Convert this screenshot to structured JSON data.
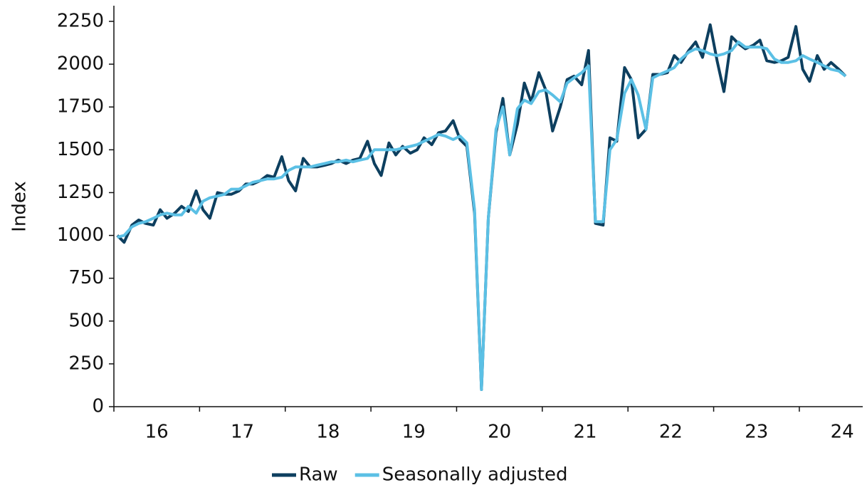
{
  "chart_data": {
    "type": "line",
    "ylabel": "Index",
    "x": [
      16.0,
      16.08,
      16.17,
      16.25,
      16.33,
      16.42,
      16.5,
      16.58,
      16.67,
      16.75,
      16.83,
      16.92,
      17.0,
      17.08,
      17.17,
      17.25,
      17.33,
      17.42,
      17.5,
      17.58,
      17.67,
      17.75,
      17.83,
      17.92,
      18.0,
      18.08,
      18.17,
      18.25,
      18.33,
      18.42,
      18.5,
      18.58,
      18.67,
      18.75,
      18.83,
      18.92,
      19.0,
      19.08,
      19.17,
      19.25,
      19.33,
      19.42,
      19.5,
      19.58,
      19.67,
      19.75,
      19.83,
      19.92,
      20.0,
      20.08,
      20.17,
      20.25,
      20.33,
      20.42,
      20.5,
      20.58,
      20.67,
      20.75,
      20.83,
      20.92,
      21.0,
      21.08,
      21.17,
      21.25,
      21.33,
      21.42,
      21.5,
      21.58,
      21.67,
      21.75,
      21.83,
      21.92,
      22.0,
      22.08,
      22.17,
      22.25,
      22.33,
      22.42,
      22.5,
      22.58,
      22.67,
      22.75,
      22.83,
      22.92,
      23.0,
      23.08,
      23.17,
      23.25,
      23.33,
      23.42,
      23.5,
      23.58,
      23.67,
      23.75,
      23.83,
      23.92,
      24.0,
      24.08,
      24.17,
      24.25,
      24.33,
      24.42,
      24.5
    ],
    "series": [
      {
        "name": "Raw",
        "color": "#0d3f5f",
        "values": [
          1000,
          960,
          1060,
          1090,
          1070,
          1060,
          1150,
          1100,
          1130,
          1170,
          1140,
          1260,
          1150,
          1100,
          1250,
          1240,
          1240,
          1260,
          1300,
          1300,
          1320,
          1350,
          1340,
          1460,
          1320,
          1260,
          1450,
          1400,
          1400,
          1410,
          1420,
          1440,
          1420,
          1440,
          1450,
          1550,
          1420,
          1350,
          1540,
          1470,
          1520,
          1480,
          1500,
          1570,
          1530,
          1600,
          1610,
          1670,
          1560,
          1520,
          1130,
          100,
          1100,
          1600,
          1800,
          1470,
          1650,
          1890,
          1780,
          1950,
          1850,
          1610,
          1750,
          1910,
          1930,
          1880,
          2080,
          1070,
          1060,
          1570,
          1550,
          1980,
          1910,
          1570,
          1620,
          1940,
          1940,
          1950,
          2050,
          2010,
          2080,
          2130,
          2040,
          2230,
          2020,
          1840,
          2160,
          2120,
          2090,
          2110,
          2140,
          2020,
          2010,
          2020,
          2040,
          2220,
          1970,
          1900,
          2050,
          1970,
          2010,
          1970,
          1930
        ]
      },
      {
        "name": "Seasonally adjusted",
        "color": "#5bc0e5",
        "values": [
          990,
          1000,
          1050,
          1070,
          1080,
          1100,
          1120,
          1130,
          1120,
          1120,
          1170,
          1130,
          1200,
          1220,
          1230,
          1240,
          1270,
          1270,
          1290,
          1310,
          1320,
          1330,
          1330,
          1340,
          1380,
          1400,
          1400,
          1400,
          1410,
          1420,
          1430,
          1430,
          1440,
          1430,
          1440,
          1450,
          1500,
          1500,
          1500,
          1500,
          1510,
          1520,
          1530,
          1550,
          1570,
          1590,
          1580,
          1560,
          1580,
          1540,
          1150,
          100,
          1100,
          1620,
          1750,
          1470,
          1740,
          1790,
          1770,
          1840,
          1850,
          1820,
          1780,
          1890,
          1920,
          1950,
          1990,
          1080,
          1080,
          1500,
          1560,
          1830,
          1910,
          1820,
          1620,
          1920,
          1940,
          1960,
          1980,
          2030,
          2070,
          2090,
          2080,
          2060,
          2050,
          2060,
          2080,
          2130,
          2100,
          2100,
          2100,
          2090,
          2030,
          2010,
          2010,
          2020,
          2050,
          2030,
          2010,
          1990,
          1970,
          1960,
          1930
        ]
      }
    ],
    "xlim": [
      15.96,
      24.7
    ],
    "xticks": [
      {
        "value": 16.46,
        "label": "16"
      },
      {
        "value": 17.46,
        "label": "17"
      },
      {
        "value": 18.46,
        "label": "18"
      },
      {
        "value": 19.46,
        "label": "19"
      },
      {
        "value": 20.46,
        "label": "20"
      },
      {
        "value": 21.46,
        "label": "21"
      },
      {
        "value": 22.46,
        "label": "22"
      },
      {
        "value": 23.46,
        "label": "23"
      },
      {
        "value": 24.46,
        "label": "24"
      }
    ],
    "ylim": [
      0,
      2250
    ],
    "yticks": [
      0,
      250,
      500,
      750,
      1000,
      1250,
      1500,
      1750,
      2000,
      2250
    ],
    "legend": "bottom"
  }
}
